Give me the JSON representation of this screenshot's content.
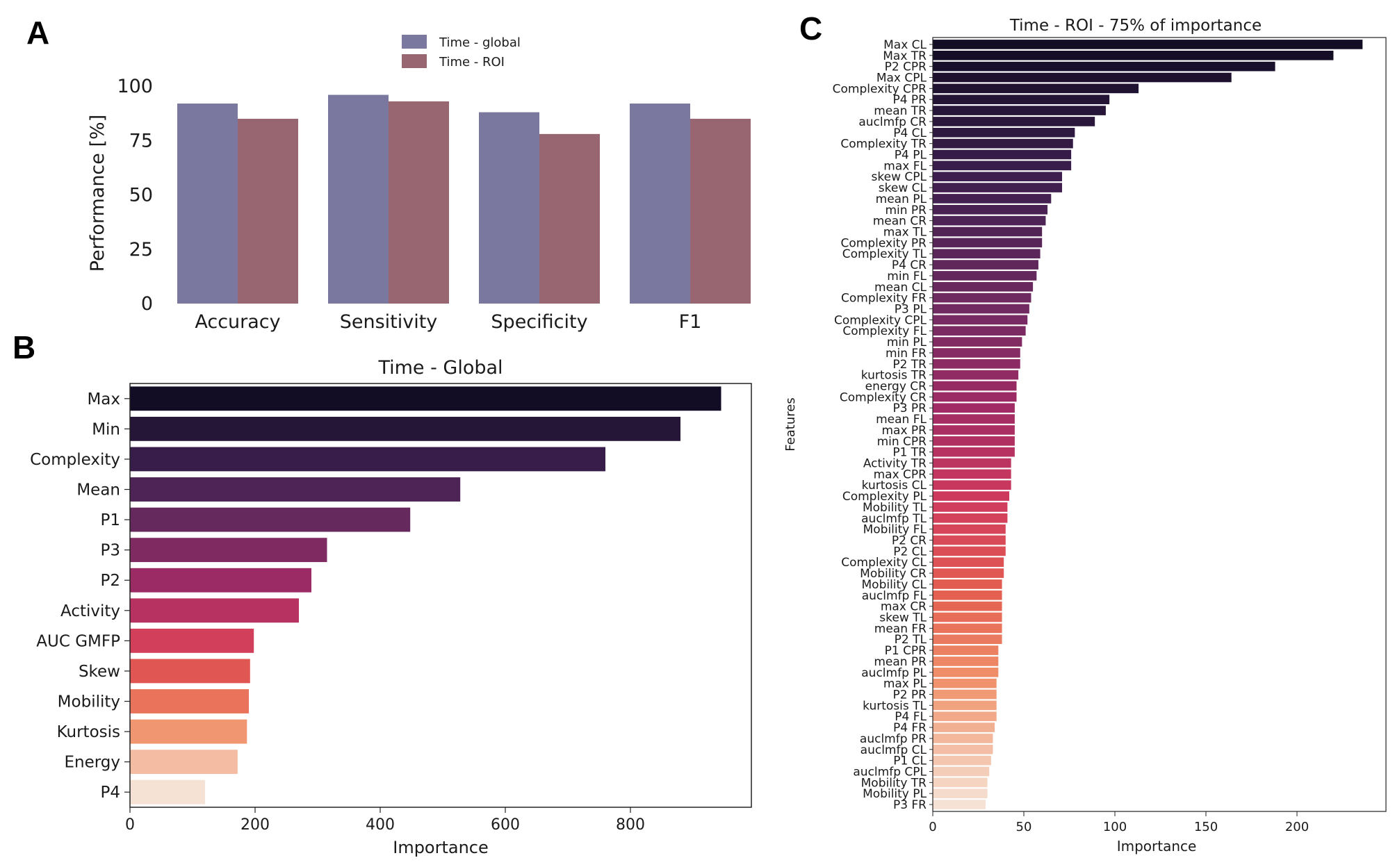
{
  "panels": {
    "a": "A",
    "b": "B",
    "c": "C"
  },
  "colors": {
    "time_global": "#7a789f",
    "time_roi": "#976671",
    "seq_dark": "#120d24",
    "seq_light": "#f6e2d5"
  },
  "chart_data": [
    {
      "id": "A",
      "type": "bar",
      "title": "",
      "xlabel": "",
      "ylabel": "Performance [%]",
      "ylim": [
        0,
        100
      ],
      "yticks": [
        "0",
        "25",
        "50",
        "75",
        "100"
      ],
      "categories": [
        "Accuracy",
        "Sensitivity",
        "Specificity",
        "F1"
      ],
      "series": [
        {
          "name": "Time - global",
          "values": [
            92,
            96,
            88,
            92
          ]
        },
        {
          "name": "Time - ROI",
          "values": [
            85,
            93,
            78,
            85
          ]
        }
      ],
      "legend": "top-center"
    },
    {
      "id": "B",
      "type": "bar",
      "orientation": "horizontal",
      "title": "Time - Global",
      "xlabel": "Importance",
      "ylabel": "",
      "xlim": [
        0,
        1000
      ],
      "xticks": [
        "0",
        "200",
        "400",
        "600",
        "800"
      ],
      "categories": [
        "Max",
        "Min",
        "Complexity",
        "Mean",
        "P1",
        "P3",
        "P2",
        "Activity",
        "AUC GMFP",
        "Skew",
        "Mobility",
        "Kurtosis",
        "Energy",
        "P4"
      ],
      "values": [
        945,
        880,
        760,
        528,
        448,
        315,
        290,
        270,
        198,
        192,
        190,
        187,
        172,
        120
      ]
    },
    {
      "id": "C",
      "type": "bar",
      "orientation": "horizontal",
      "title": "Time - ROI - 75% of importance",
      "xlabel": "Importance",
      "ylabel": "Features",
      "xlim": [
        0,
        245
      ],
      "xticks": [
        "0",
        "50",
        "100",
        "150",
        "200"
      ],
      "categories": [
        "Max CL",
        "Max TR",
        "P2 CPR",
        "Max CPL",
        "Complexity CPR",
        "P4 PR",
        "mean TR",
        "auclmfp CR",
        "P4 CL",
        "Complexity TR",
        "P4 PL",
        "max FL",
        "skew CPL",
        "skew CL",
        "mean PL",
        "min PR",
        "mean CR",
        "max TL",
        "Complexity PR",
        "Complexity TL",
        "P4 CR",
        "min FL",
        "mean CL",
        "Complexity FR",
        "P3 PL",
        "Complexity CPL",
        "Complexity FL",
        "min PL",
        "min FR",
        "P2 TR",
        "kurtosis TR",
        "energy CR",
        "Complexity CR",
        "P3 PR",
        "mean FL",
        "max PR",
        "min CPR",
        "P1 TR",
        "Activity TR",
        "max CPR",
        "kurtosis CL",
        "Complexity PL",
        "Mobility TL",
        "auclmfp TL",
        "Mobility FL",
        "P2 CR",
        "P2 CL",
        "Complexity CL",
        "Mobility CR",
        "Mobility CL",
        "auclmfp FL",
        "max CR",
        "skew TL",
        "mean FR",
        "P2 TL",
        "P1 CPR",
        "mean PR",
        "auclmfp PL",
        "max PL",
        "P2 PR",
        "kurtosis TL",
        "P4 FL",
        "P4 FR",
        "auclmfp PR",
        "auclmfp CL",
        "P1 CL",
        "auclmfp CPL",
        "Mobility TR",
        "Mobility PL",
        "P3 FR"
      ],
      "values": [
        236,
        220,
        188,
        164,
        113,
        97,
        95,
        89,
        78,
        77,
        76,
        76,
        71,
        71,
        65,
        63,
        62,
        60,
        60,
        59,
        58,
        57,
        55,
        54,
        53,
        52,
        51,
        49,
        48,
        48,
        47,
        46,
        46,
        45,
        45,
        45,
        45,
        45,
        43,
        43,
        43,
        42,
        41,
        41,
        40,
        40,
        40,
        39,
        39,
        38,
        38,
        38,
        38,
        38,
        38,
        36,
        36,
        36,
        35,
        35,
        35,
        35,
        34,
        33,
        33,
        32,
        31,
        30,
        30,
        29
      ]
    }
  ]
}
